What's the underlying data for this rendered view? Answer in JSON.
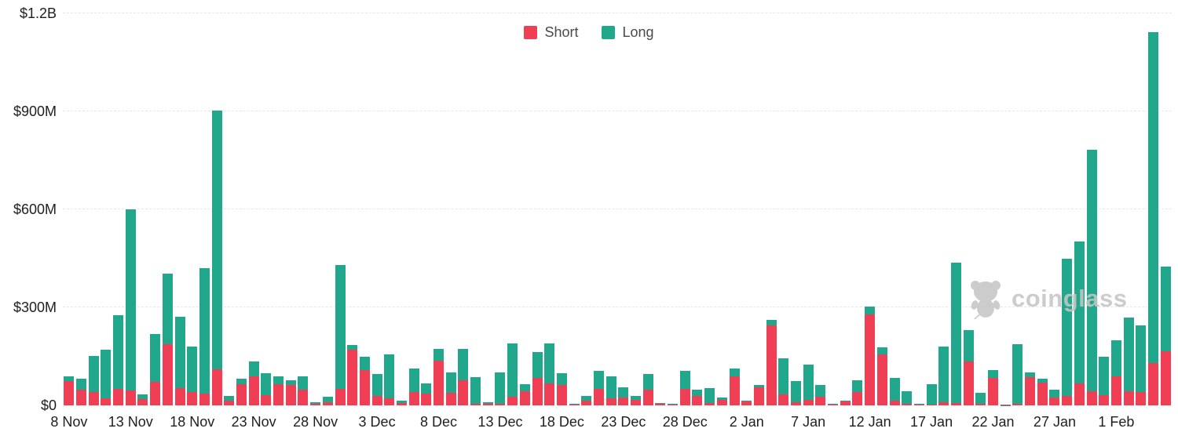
{
  "legend": {
    "short_label": "Short",
    "long_label": "Long"
  },
  "colors": {
    "short": "#f03e55",
    "long": "#20a78c",
    "grid": "#e7e7e7",
    "axis_text": "#1f1f1f",
    "watermark": "#c6c6c6"
  },
  "watermark": {
    "text": "coinglass"
  },
  "chart_data": {
    "type": "bar",
    "stacked": true,
    "title": "",
    "xlabel": "",
    "ylabel": "",
    "unit": "USD millions",
    "ylim": [
      0,
      1200
    ],
    "grid": "dashed-horizontal",
    "legend_position": "top-center",
    "x_tick_every": 5,
    "y_ticks": [
      {
        "value": 0,
        "label": "$0"
      },
      {
        "value": 300,
        "label": "$300M"
      },
      {
        "value": 600,
        "label": "$600M"
      },
      {
        "value": 900,
        "label": "$900M"
      },
      {
        "value": 1200,
        "label": "$1.2B"
      }
    ],
    "x": [
      "8 Nov",
      "9 Nov",
      "10 Nov",
      "11 Nov",
      "12 Nov",
      "13 Nov",
      "14 Nov",
      "15 Nov",
      "16 Nov",
      "17 Nov",
      "18 Nov",
      "19 Nov",
      "20 Nov",
      "21 Nov",
      "22 Nov",
      "23 Nov",
      "24 Nov",
      "25 Nov",
      "26 Nov",
      "27 Nov",
      "28 Nov",
      "29 Nov",
      "30 Nov",
      "1 Dec",
      "2 Dec",
      "3 Dec",
      "4 Dec",
      "5 Dec",
      "6 Dec",
      "7 Dec",
      "8 Dec",
      "9 Dec",
      "10 Dec",
      "11 Dec",
      "12 Dec",
      "13 Dec",
      "14 Dec",
      "15 Dec",
      "16 Dec",
      "17 Dec",
      "18 Dec",
      "19 Dec",
      "20 Dec",
      "21 Dec",
      "22 Dec",
      "23 Dec",
      "24 Dec",
      "25 Dec",
      "26 Dec",
      "27 Dec",
      "28 Dec",
      "29 Dec",
      "30 Dec",
      "31 Dec",
      "1 Jan",
      "2 Jan",
      "3 Jan",
      "4 Jan",
      "5 Jan",
      "6 Jan",
      "7 Jan",
      "8 Jan",
      "9 Jan",
      "10 Jan",
      "11 Jan",
      "12 Jan",
      "13 Jan",
      "14 Jan",
      "15 Jan",
      "16 Jan",
      "17 Jan",
      "18 Jan",
      "19 Jan",
      "20 Jan",
      "21 Jan",
      "22 Jan",
      "23 Jan",
      "24 Jan",
      "25 Jan",
      "26 Jan",
      "27 Jan",
      "28 Jan",
      "29 Jan",
      "30 Jan",
      "31 Jan",
      "1 Feb",
      "2 Feb",
      "3 Feb",
      "4 Feb",
      "5 Feb"
    ],
    "series": [
      {
        "name": "Short",
        "color_key": "short",
        "values": [
          75,
          48,
          42,
          22,
          50,
          45,
          20,
          72,
          188,
          52,
          40,
          36,
          110,
          14,
          66,
          89,
          31,
          66,
          62,
          48,
          4,
          10,
          50,
          170,
          108,
          30,
          22,
          8,
          42,
          36,
          138,
          38,
          78,
          6,
          4,
          4,
          26,
          44,
          84,
          68,
          62,
          3,
          14,
          50,
          22,
          24,
          18,
          48,
          5,
          2,
          50,
          30,
          8,
          18,
          90,
          11,
          56,
          244,
          34,
          10,
          18,
          26,
          2,
          12,
          40,
          278,
          156,
          14,
          4,
          2,
          2,
          10,
          8,
          134,
          4,
          84,
          1,
          4,
          86,
          70,
          24,
          28,
          68,
          44,
          32,
          88,
          44,
          40,
          130,
          166
        ]
      },
      {
        "name": "Long",
        "color_key": "long",
        "values": [
          15,
          33,
          109,
          148,
          226,
          555,
          14,
          146,
          216,
          220,
          140,
          384,
          792,
          16,
          16,
          45,
          67,
          22,
          14,
          42,
          6,
          16,
          380,
          16,
          40,
          66,
          134,
          6,
          72,
          32,
          34,
          64,
          96,
          80,
          5,
          96,
          164,
          22,
          80,
          122,
          36,
          3,
          14,
          56,
          66,
          32,
          12,
          48,
          3,
          2,
          56,
          18,
          44,
          6,
          22,
          3,
          6,
          18,
          110,
          64,
          108,
          36,
          2,
          2,
          36,
          24,
          22,
          70,
          40,
          2,
          62,
          170,
          430,
          96,
          34,
          24,
          1,
          184,
          14,
          12,
          24,
          420,
          434,
          738,
          116,
          112,
          226,
          204,
          1012,
          258
        ]
      }
    ]
  }
}
